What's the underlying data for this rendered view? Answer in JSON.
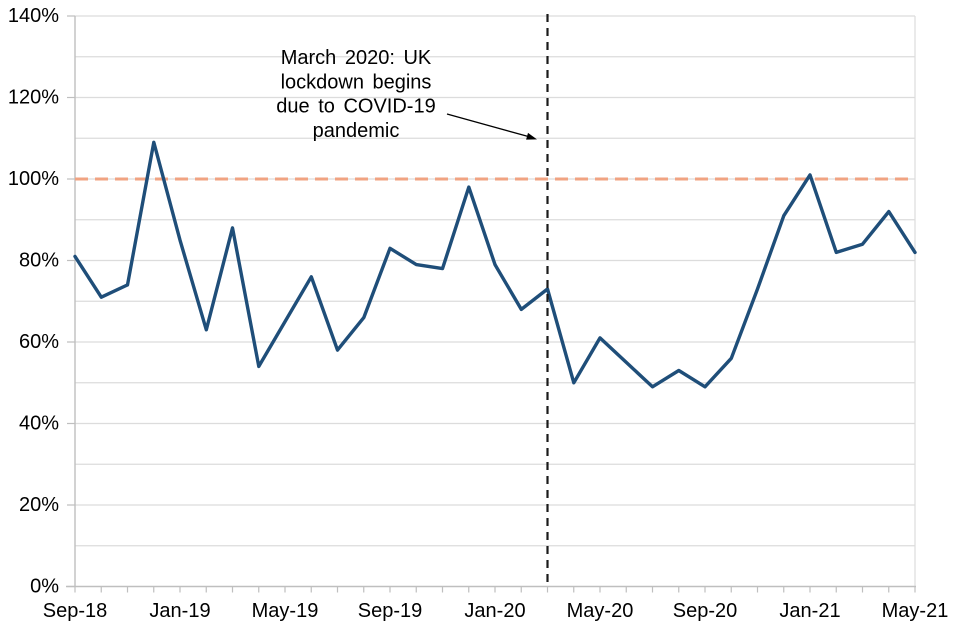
{
  "page": {
    "background": "#ffffff"
  },
  "chart_data": {
    "type": "line",
    "title": "",
    "xlabel": "",
    "ylabel": "",
    "x": [
      "Sep-18",
      "Oct-18",
      "Nov-18",
      "Dec-18",
      "Jan-19",
      "Feb-19",
      "Mar-19",
      "Apr-19",
      "May-19",
      "Jun-19",
      "Jul-19",
      "Aug-19",
      "Sep-19",
      "Oct-19",
      "Nov-19",
      "Dec-19",
      "Jan-20",
      "Feb-20",
      "Mar-20",
      "Apr-20",
      "May-20",
      "Jun-20",
      "Jul-20",
      "Aug-20",
      "Sep-20",
      "Oct-20",
      "Nov-20",
      "Dec-20",
      "Jan-21",
      "Feb-21",
      "Mar-21",
      "Apr-21",
      "May-21"
    ],
    "series": [
      {
        "name": "percentage-series",
        "color": "#1F4E79",
        "values": [
          81,
          71,
          74,
          109,
          85,
          63,
          88,
          54,
          65,
          76,
          58,
          66,
          83,
          79,
          78,
          98,
          79,
          68,
          73,
          50,
          61,
          55,
          49,
          53,
          49,
          56,
          73,
          91,
          101,
          82,
          84,
          92,
          82
        ]
      }
    ],
    "ylim": [
      0,
      140
    ],
    "yticks_labeled": [
      0,
      20,
      40,
      60,
      80,
      100,
      120,
      140
    ],
    "ytick_labels": [
      "0%",
      "20%",
      "40%",
      "60%",
      "80%",
      "100%",
      "120%",
      "140%"
    ],
    "ygrid_interval": 10,
    "xtick_label_every": 4,
    "xtick_labels_shown": [
      "Sep-18",
      "Jan-19",
      "May-19",
      "Sep-19",
      "Jan-20",
      "May-20",
      "Sep-20",
      "Jan-21",
      "May-21"
    ],
    "grid": true,
    "legend": "none",
    "reference_line": {
      "value": 100,
      "color": "#F0A382",
      "style": "dashed"
    },
    "event_line": {
      "x": "Mar-20",
      "color": "#1A1A1A",
      "style": "dashed"
    },
    "annotation": {
      "lines": [
        "March 2020: UK",
        "lockdown begins",
        "due to COVID-19",
        "pandemic"
      ],
      "arrow": "points-to-event-line"
    },
    "colors": {
      "grid": "#DCDCDC",
      "axis": "#BFBFBF",
      "text": "#000000"
    }
  }
}
